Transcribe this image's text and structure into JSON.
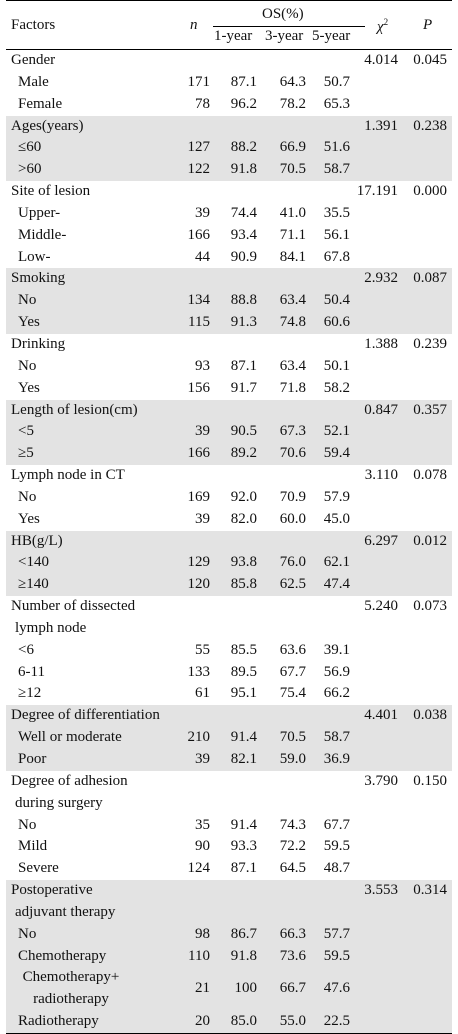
{
  "header": {
    "factors": "Factors",
    "n": "n",
    "os": "OS(%)",
    "y1": "1-year",
    "y3": "3-year",
    "y5": "5-year",
    "chi": "χ",
    "chi_sup": "2",
    "p": "P"
  },
  "groups": [
    {
      "label": [
        "Gender"
      ],
      "chi": "4.014",
      "p": "0.045",
      "shade": false,
      "rows": [
        [
          "Male",
          "171",
          "87.1",
          "64.3",
          "50.7"
        ],
        [
          "Female",
          "78",
          "96.2",
          "78.2",
          "65.3"
        ]
      ]
    },
    {
      "label": [
        "Ages(years)"
      ],
      "chi": "1.391",
      "p": "0.238",
      "shade": true,
      "rows": [
        [
          "≤60",
          "127",
          "88.2",
          "66.9",
          "51.6"
        ],
        [
          ">60",
          "122",
          "91.8",
          "70.5",
          "58.7"
        ]
      ]
    },
    {
      "label": [
        "Site of lesion"
      ],
      "chi": "17.191",
      "p": "0.000",
      "shade": false,
      "rows": [
        [
          "Upper-",
          "39",
          "74.4",
          "41.0",
          "35.5"
        ],
        [
          "Middle-",
          "166",
          "93.4",
          "71.1",
          "56.1"
        ],
        [
          "Low-",
          "44",
          "90.9",
          "84.1",
          "67.8"
        ]
      ]
    },
    {
      "label": [
        "Smoking"
      ],
      "chi": "2.932",
      "p": "0.087",
      "shade": true,
      "rows": [
        [
          "No",
          "134",
          "88.8",
          "63.4",
          "50.4"
        ],
        [
          "Yes",
          "115",
          "91.3",
          "74.8",
          "60.6"
        ]
      ]
    },
    {
      "label": [
        "Drinking"
      ],
      "chi": "1.388",
      "p": "0.239",
      "shade": false,
      "rows": [
        [
          "No",
          "93",
          "87.1",
          "63.4",
          "50.1"
        ],
        [
          "Yes",
          "156",
          "91.7",
          "71.8",
          "58.2"
        ]
      ]
    },
    {
      "label": [
        "Length of lesion(cm)"
      ],
      "chi": "0.847",
      "p": "0.357",
      "shade": true,
      "rows": [
        [
          "<5",
          "39",
          "90.5",
          "67.3",
          "52.1"
        ],
        [
          "≥5",
          "166",
          "89.2",
          "70.6",
          "59.4"
        ]
      ]
    },
    {
      "label": [
        "Lymph node in CT"
      ],
      "chi": "3.110",
      "p": "0.078",
      "shade": false,
      "rows": [
        [
          "No",
          "169",
          "92.0",
          "70.9",
          "57.9"
        ],
        [
          "Yes",
          "39",
          "82.0",
          "60.0",
          "45.0"
        ]
      ]
    },
    {
      "label": [
        "HB(g/L)"
      ],
      "chi": "6.297",
      "p": "0.012",
      "shade": true,
      "rows": [
        [
          "<140",
          "129",
          "93.8",
          "76.0",
          "62.1"
        ],
        [
          "≥140",
          "120",
          "85.8",
          "62.5",
          "47.4"
        ]
      ]
    },
    {
      "label": [
        "Number of dissected",
        "lymph node"
      ],
      "chi": "5.240",
      "p": "0.073",
      "shade": false,
      "rows": [
        [
          "<6",
          "55",
          "85.5",
          "63.6",
          "39.1"
        ],
        [
          "6-11",
          "133",
          "89.5",
          "67.7",
          "56.9"
        ],
        [
          "≥12",
          "61",
          "95.1",
          "75.4",
          "66.2"
        ]
      ]
    },
    {
      "label": [
        "Degree of differentiation"
      ],
      "chi": "4.401",
      "p": "0.038",
      "shade": true,
      "rows": [
        [
          "Well or moderate",
          "210",
          "91.4",
          "70.5",
          "58.7"
        ],
        [
          "Poor",
          "39",
          "82.1",
          "59.0",
          "36.9"
        ]
      ]
    },
    {
      "label": [
        "Degree of adhesion",
        "during surgery"
      ],
      "chi": "3.790",
      "p": "0.150",
      "shade": false,
      "rows": [
        [
          "No",
          "35",
          "91.4",
          "74.3",
          "67.7"
        ],
        [
          "Mild",
          "90",
          "93.3",
          "72.2",
          "59.5"
        ],
        [
          "Severe",
          "124",
          "87.1",
          "64.5",
          "48.7"
        ]
      ]
    },
    {
      "label": [
        "Postoperative",
        "adjuvant therapy"
      ],
      "chi": "3.553",
      "p": "0.314",
      "shade": true,
      "rows": [
        [
          "No",
          "98",
          "86.7",
          "66.3",
          "57.7"
        ],
        [
          "Chemotherapy",
          "110",
          "91.8",
          "73.6",
          "59.5"
        ],
        [
          "Chemotherapy+ radiotherapy",
          "21",
          "100",
          "66.7",
          "47.6"
        ],
        [
          "Radiotherapy",
          "20",
          "85.0",
          "55.0",
          "22.5"
        ]
      ]
    }
  ]
}
